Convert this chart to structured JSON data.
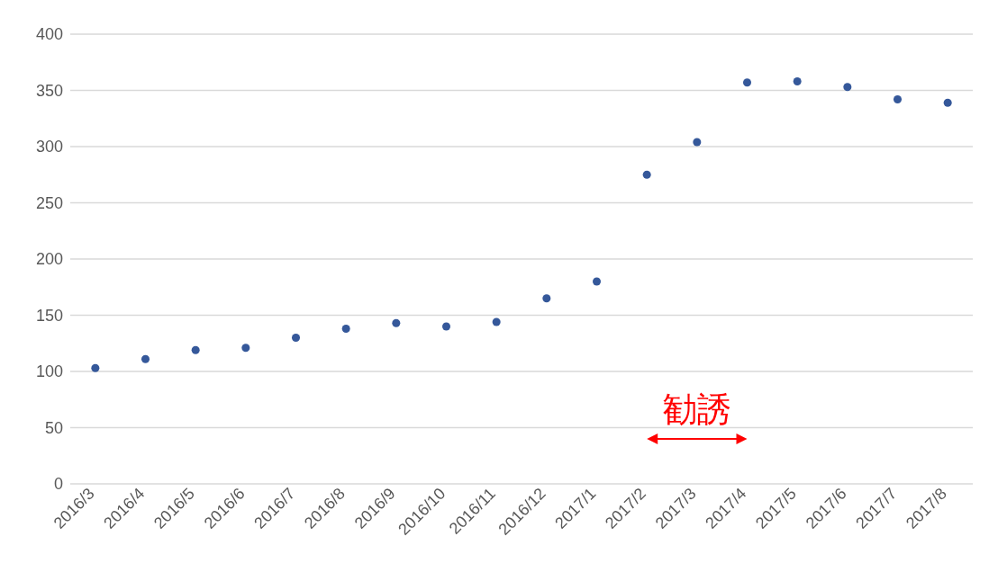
{
  "chart_data": {
    "type": "scatter",
    "categories": [
      "2016/3",
      "2016/4",
      "2016/5",
      "2016/6",
      "2016/7",
      "2016/8",
      "2016/9",
      "2016/10",
      "2016/11",
      "2016/12",
      "2017/1",
      "2017/2",
      "2017/3",
      "2017/4",
      "2017/5",
      "2017/6",
      "2017/7",
      "2017/8"
    ],
    "series": [
      {
        "color": "#35589a",
        "values": [
          103,
          111,
          119,
          121,
          130,
          138,
          143,
          140,
          144,
          165,
          180,
          275,
          304,
          357,
          358,
          353,
          342,
          339
        ]
      }
    ],
    "ylim": [
      0,
      400
    ],
    "yticks": [
      0,
      50,
      100,
      150,
      200,
      250,
      300,
      350,
      400
    ],
    "grid": "y",
    "legend": false,
    "annotations": [
      "勧誘"
    ]
  }
}
